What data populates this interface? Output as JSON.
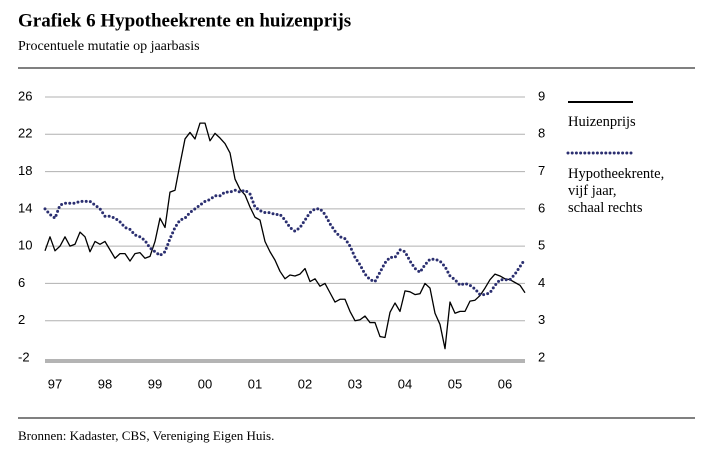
{
  "chart_data": {
    "type": "line",
    "title": "Grafiek 6  Hypotheekrente en huizenprijs",
    "subtitle": "Procentuele mutatie op jaarbasis",
    "source": "Bronnen: Kadaster, CBS, Vereniging Eigen Huis.",
    "x": [
      1997.0,
      1997.1,
      1997.2,
      1997.3,
      1997.4,
      1997.5,
      1997.6,
      1997.7,
      1997.8,
      1997.9,
      1998.0,
      1998.1,
      1998.2,
      1998.3,
      1998.4,
      1998.5,
      1998.6,
      1998.7,
      1998.8,
      1998.9,
      1999.0,
      1999.1,
      1999.2,
      1999.3,
      1999.4,
      1999.5,
      1999.6,
      1999.7,
      1999.8,
      1999.9,
      2000.0,
      2000.1,
      2000.2,
      2000.3,
      2000.4,
      2000.5,
      2000.6,
      2000.7,
      2000.8,
      2000.9,
      2001.0,
      2001.1,
      2001.2,
      2001.3,
      2001.4,
      2001.5,
      2001.6,
      2001.7,
      2001.8,
      2001.9,
      2002.0,
      2002.1,
      2002.2,
      2002.3,
      2002.4,
      2002.5,
      2002.6,
      2002.7,
      2002.8,
      2002.9,
      2003.0,
      2003.1,
      2003.2,
      2003.3,
      2003.4,
      2003.5,
      2003.6,
      2003.7,
      2003.8,
      2003.9,
      2004.0,
      2004.1,
      2004.2,
      2004.3,
      2004.4,
      2004.5,
      2004.6,
      2004.7,
      2004.8,
      2004.9,
      2005.0,
      2005.1,
      2005.2,
      2005.3,
      2005.4,
      2005.5,
      2005.6,
      2005.7,
      2005.8,
      2005.9,
      2006.0,
      2006.1,
      2006.2,
      2006.3,
      2006.4,
      2006.5,
      2006.6
    ],
    "series": [
      {
        "name": "Huizenprijs",
        "color": "#000000",
        "style": "solid",
        "axis": "y",
        "values": [
          9.5,
          11,
          9.5,
          10,
          11,
          10,
          10.2,
          11.5,
          11,
          9.4,
          10.5,
          10.2,
          10.5,
          9.6,
          8.7,
          9.2,
          9.2,
          8.4,
          9.2,
          9.3,
          8.7,
          8.9,
          10.5,
          13,
          12,
          15.8,
          16,
          18.8,
          21.5,
          22.2,
          21.5,
          23.2,
          23.2,
          21.3,
          22.1,
          21.6,
          21,
          20,
          17.2,
          16.1,
          15.5,
          14.2,
          13.1,
          12.8,
          10.5,
          9.4,
          8.5,
          7.3,
          6.5,
          6.9,
          6.8,
          7,
          7.6,
          6.2,
          6.5,
          5.7,
          6,
          5,
          4,
          4.3,
          4.3,
          3,
          2,
          2.1,
          2.5,
          1.8,
          1.8,
          0.3,
          0.2,
          2.9,
          3.9,
          3,
          5.2,
          5.1,
          4.8,
          4.9,
          6,
          5.5,
          2.8,
          1.6,
          -1,
          4,
          2.8,
          3,
          3,
          4.1,
          4.2,
          4.7,
          5.5,
          6.4,
          7,
          6.8,
          6.5,
          6.4,
          6.1,
          5.8,
          5
        ]
      },
      {
        "name": "Hypotheekrente,\nvijf jaar,\nschaal rechts",
        "color": "#2b2f70",
        "style": "dotted",
        "axis": "y2",
        "values": [
          6.0,
          5.85,
          5.75,
          6.1,
          6.15,
          6.15,
          6.15,
          6.2,
          6.2,
          6.2,
          6.1,
          6.0,
          5.8,
          5.8,
          5.75,
          5.65,
          5.5,
          5.45,
          5.3,
          5.25,
          5.15,
          4.95,
          4.85,
          4.75,
          4.85,
          5.2,
          5.5,
          5.7,
          5.75,
          5.9,
          6.0,
          6.1,
          6.2,
          6.25,
          6.35,
          6.35,
          6.45,
          6.45,
          6.5,
          6.45,
          6.5,
          6.4,
          6.05,
          5.95,
          5.9,
          5.9,
          5.85,
          5.85,
          5.7,
          5.5,
          5.4,
          5.5,
          5.7,
          5.9,
          6.0,
          6.0,
          5.85,
          5.6,
          5.4,
          5.25,
          5.2,
          5.0,
          4.7,
          4.5,
          4.25,
          4.1,
          4.05,
          4.3,
          4.55,
          4.7,
          4.7,
          4.9,
          4.85,
          4.6,
          4.4,
          4.3,
          4.5,
          4.65,
          4.65,
          4.6,
          4.45,
          4.2,
          4.1,
          3.95,
          4.0,
          3.95,
          3.85,
          3.7,
          3.7,
          3.75,
          3.95,
          4.1,
          4.1,
          4.1,
          4.25,
          4.45,
          4.65
        ]
      }
    ],
    "xlim": [
      1997,
      2006.6
    ],
    "xticks": [
      {
        "value": 1997,
        "label": "97"
      },
      {
        "value": 1998,
        "label": "98"
      },
      {
        "value": 1999,
        "label": "99"
      },
      {
        "value": 2000,
        "label": "00"
      },
      {
        "value": 2001,
        "label": "01"
      },
      {
        "value": 2002,
        "label": "02"
      },
      {
        "value": 2003,
        "label": "03"
      },
      {
        "value": 2004,
        "label": "04"
      },
      {
        "value": 2005,
        "label": "05"
      },
      {
        "value": 2006,
        "label": "06"
      }
    ],
    "ylim": [
      -2,
      26
    ],
    "yticks": [
      -2,
      2,
      6,
      10,
      14,
      18,
      22,
      26
    ],
    "y2lim": [
      2,
      9
    ],
    "y2ticks": [
      2,
      3,
      4,
      5,
      6,
      7,
      8,
      9
    ],
    "grid": true
  }
}
